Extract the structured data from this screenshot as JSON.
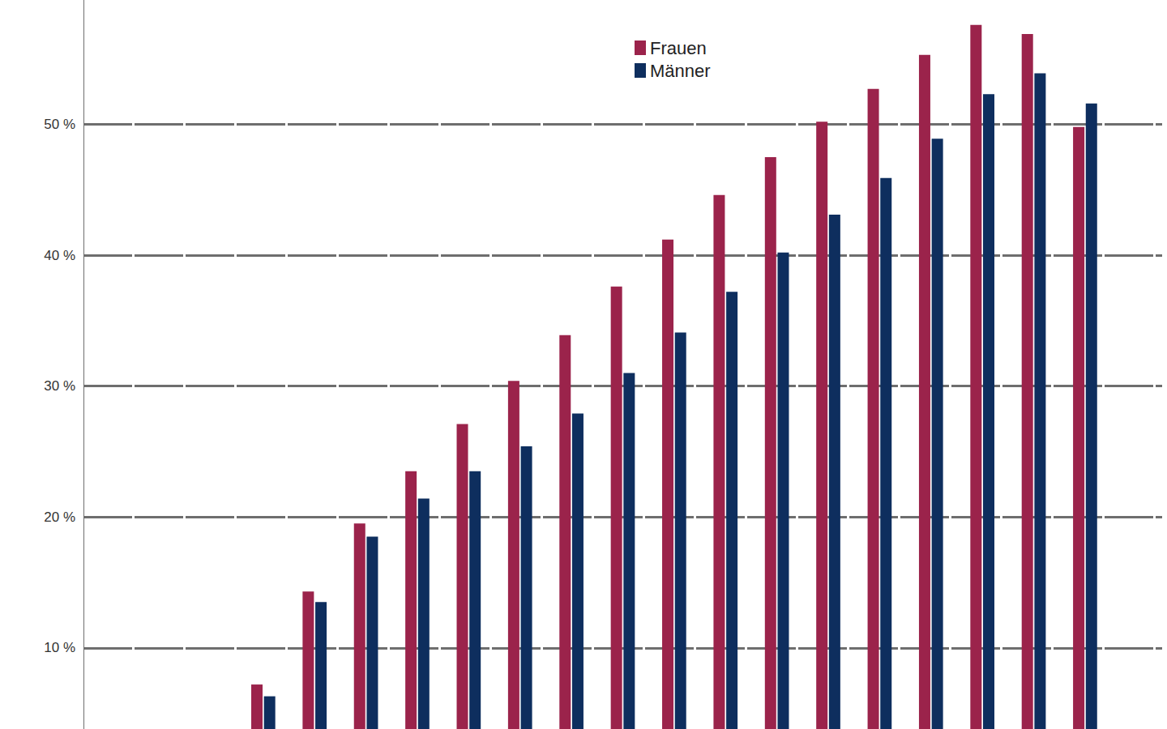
{
  "chart_data": {
    "type": "bar",
    "categories": [
      null,
      null,
      null,
      null,
      null,
      null,
      null,
      null,
      null,
      null,
      null,
      null,
      null,
      null,
      null,
      null,
      null,
      null,
      null,
      null,
      null
    ],
    "series": [
      {
        "name": "Frauen",
        "color": "#9b234b",
        "values": [
          null,
          null,
          null,
          7.2,
          14.3,
          19.5,
          23.5,
          27.1,
          30.4,
          33.9,
          37.6,
          41.2,
          44.6,
          47.5,
          50.2,
          52.7,
          55.3,
          57.6,
          56.9,
          49.8,
          null
        ]
      },
      {
        "name": "Männer",
        "color": "#0e2e5e",
        "values": [
          null,
          null,
          null,
          6.3,
          13.5,
          18.5,
          21.4,
          23.5,
          25.4,
          27.9,
          31.0,
          34.1,
          37.2,
          40.2,
          43.1,
          45.9,
          48.9,
          52.3,
          53.9,
          51.6,
          null
        ]
      }
    ],
    "ylim": [
      3.8,
      59.5
    ],
    "yticks": [
      {
        "value": 10,
        "label": "10 %"
      },
      {
        "value": 20,
        "label": "20 %"
      },
      {
        "value": 30,
        "label": "30 %"
      },
      {
        "value": 40,
        "label": "40 %"
      },
      {
        "value": 50,
        "label": "50 %"
      }
    ],
    "grid": true,
    "legend": "top",
    "tick_labels": "y"
  }
}
